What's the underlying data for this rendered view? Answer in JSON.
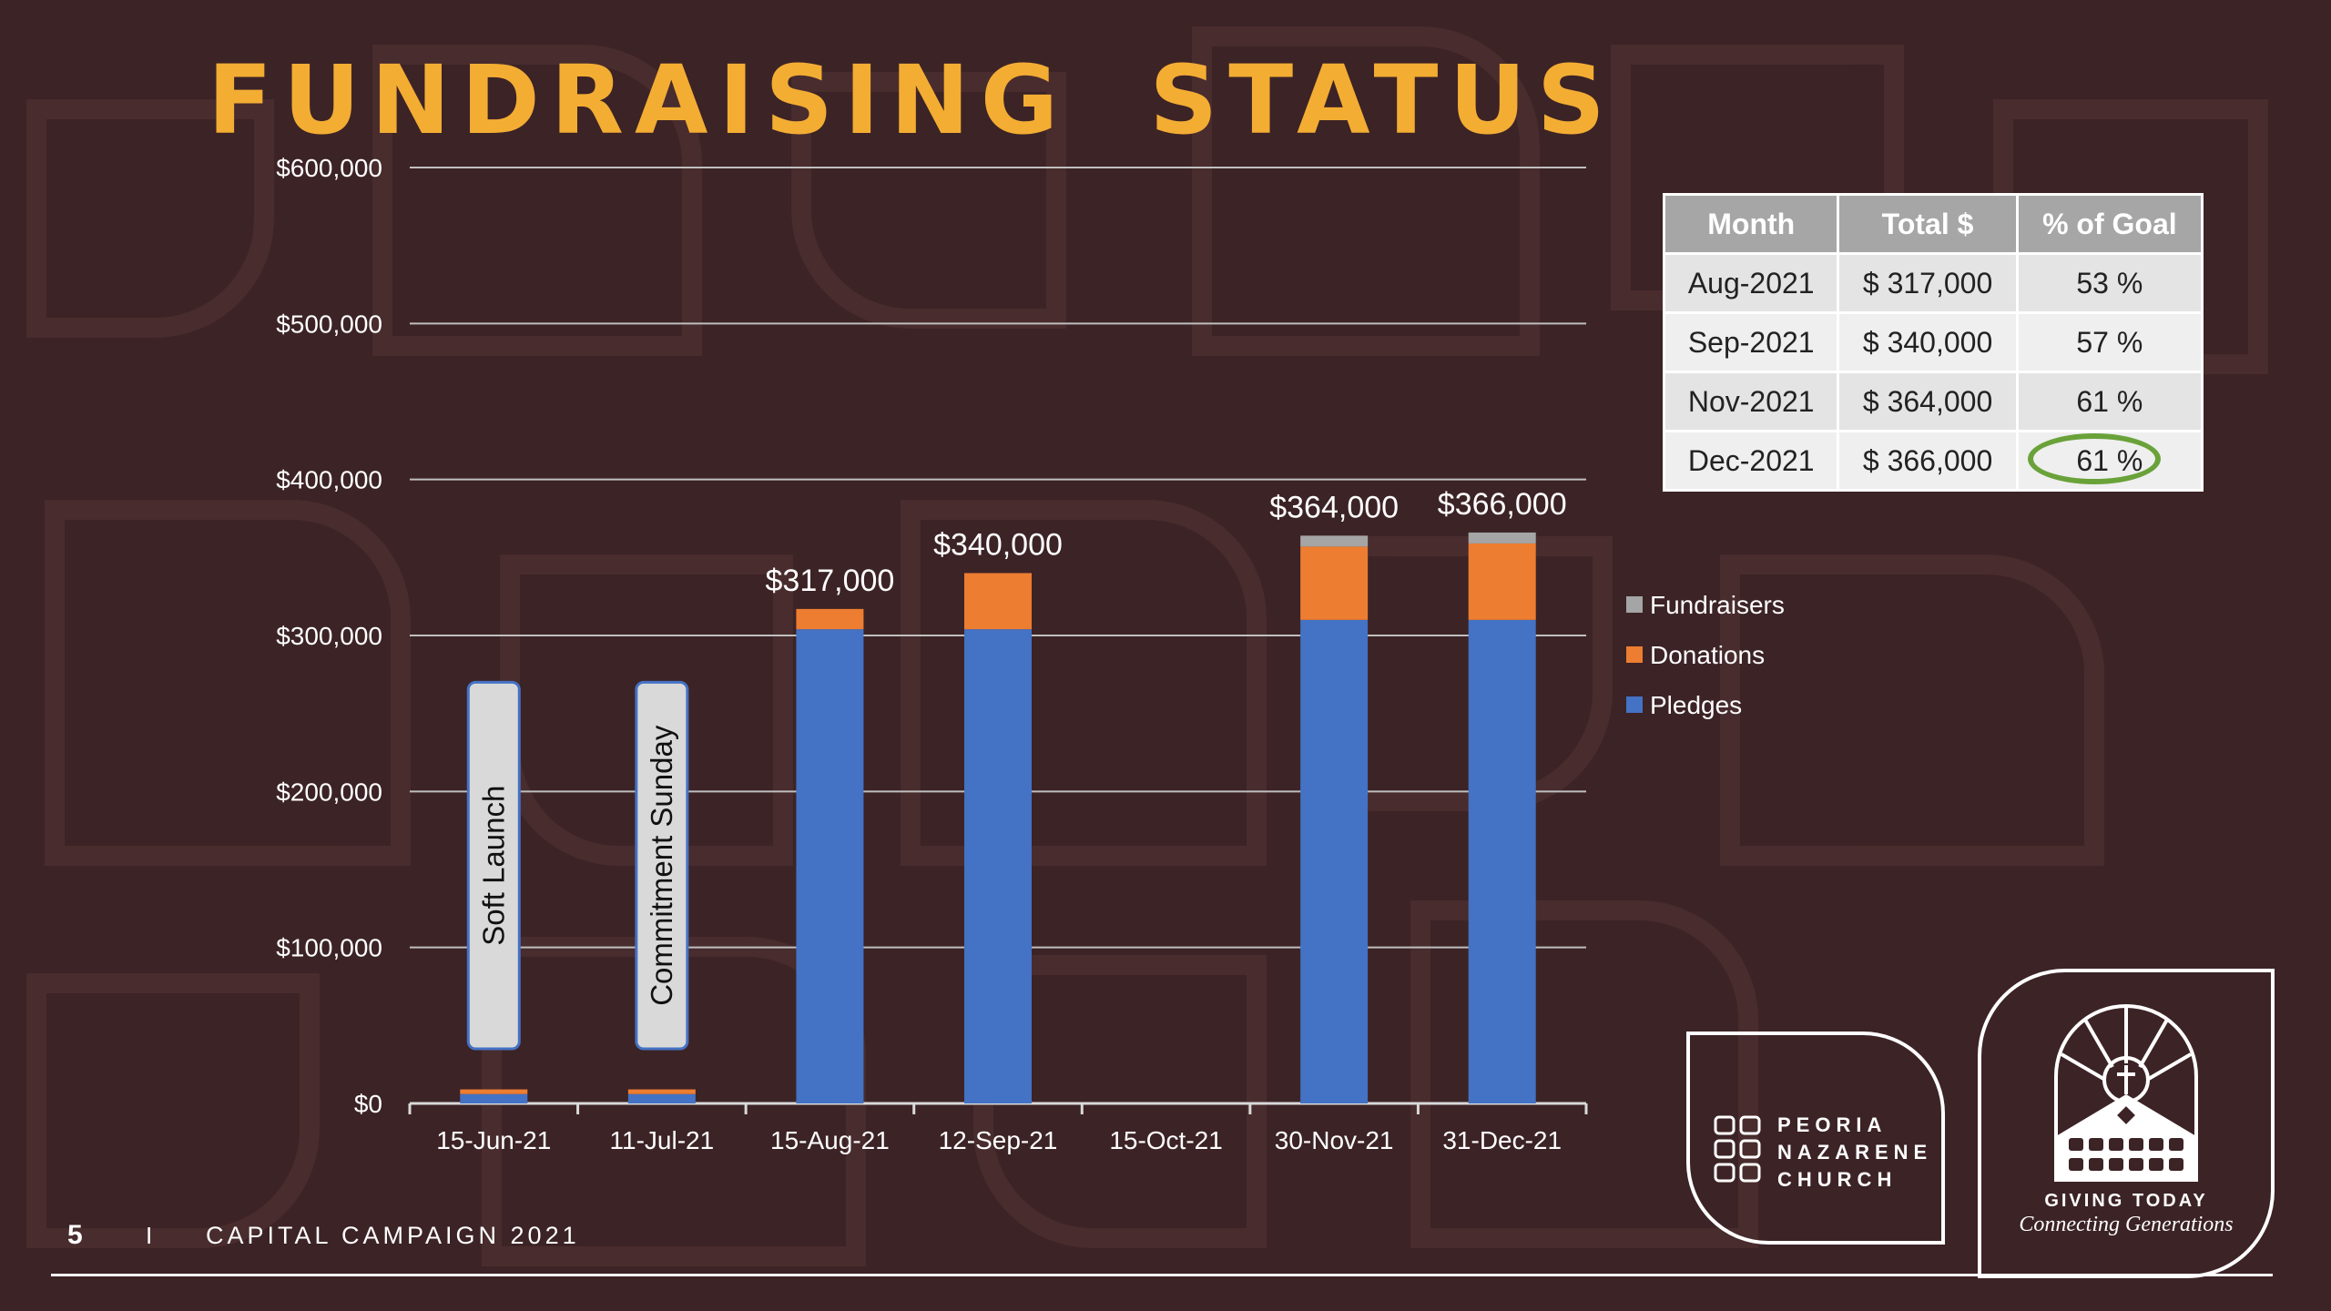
{
  "title": "FUNDRAISING STATUS",
  "footer": {
    "page_number": "5",
    "separator": "I",
    "campaign": "CAPITAL CAMPAIGN 2021"
  },
  "colors": {
    "title": "#f3ad33",
    "background": "#3c2326",
    "pledges": "#4472c4",
    "donations": "#ed7d31",
    "fundraisers": "#a5a5a5",
    "goal_circle": "#6aa23a"
  },
  "chart_data": {
    "type": "bar",
    "stacked": true,
    "categories": [
      "15-Jun-21",
      "11-Jul-21",
      "15-Aug-21",
      "12-Sep-21",
      "15-Oct-21",
      "30-Nov-21",
      "31-Dec-21"
    ],
    "series": [
      {
        "name": "Pledges",
        "color": "#4472c4",
        "values": [
          6000,
          6000,
          304000,
          304000,
          0,
          310000,
          310000
        ]
      },
      {
        "name": "Donations",
        "color": "#ed7d31",
        "values": [
          3000,
          3000,
          13000,
          36000,
          0,
          47000,
          49000
        ]
      },
      {
        "name": "Fundraisers",
        "color": "#a5a5a5",
        "values": [
          0,
          0,
          0,
          0,
          0,
          7000,
          7000
        ]
      }
    ],
    "total_labels": [
      "",
      "",
      "$317,000",
      "$340,000",
      "",
      "$364,000",
      "$366,000"
    ],
    "event_labels": [
      {
        "category": "15-Jun-21",
        "text": "Soft  Launch"
      },
      {
        "category": "11-Jul-21",
        "text": "Commitment  Sunday"
      }
    ],
    "y_ticks": [
      "$0",
      "$100,000",
      "$200,000",
      "$300,000",
      "$400,000",
      "$500,000",
      "$600,000"
    ],
    "ylim": [
      0,
      600000
    ],
    "grid": true,
    "legend_position": "right",
    "legend_order": [
      "Fundraisers",
      "Donations",
      "Pledges"
    ]
  },
  "goal_table": {
    "headers": [
      "Month",
      "Total $",
      "% of Goal"
    ],
    "rows": [
      [
        "Aug-2021",
        "$ 317,000",
        "53 %"
      ],
      [
        "Sep-2021",
        "$ 340,000",
        "57 %"
      ],
      [
        "Nov-2021",
        "$ 364,000",
        "61 %"
      ],
      [
        "Dec-2021",
        "$ 366,000",
        "61 %"
      ]
    ],
    "highlighted_cell": "61 %"
  },
  "church_logo": {
    "lines": [
      "PEORIA",
      "NAZARENE",
      "CHURCH"
    ]
  },
  "giving_logo": {
    "title": "GIVING TODAY",
    "subtitle": "Connecting Generations"
  }
}
